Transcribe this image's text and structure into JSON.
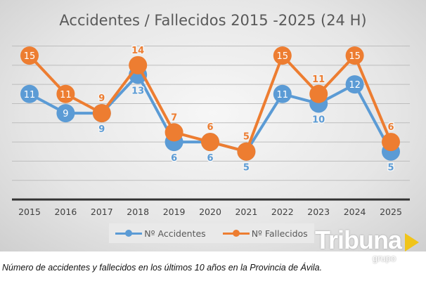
{
  "chart_data": {
    "type": "line",
    "title": "Accidentes / Fallecidos 2015  -2025 (24 H)",
    "categories": [
      "2015",
      "2016",
      "2017",
      "2018",
      "2019",
      "2020",
      "2021",
      "2022",
      "2023",
      "2024",
      "2025"
    ],
    "series": [
      {
        "name": "Nº Accidentes",
        "color": "#5b9bd5",
        "values": [
          11,
          9,
          9,
          13,
          6,
          6,
          5,
          11,
          10,
          12,
          5
        ]
      },
      {
        "name": "Nº Fallecidos",
        "color": "#ed7d31",
        "values": [
          15,
          11,
          9,
          14,
          7,
          6,
          5,
          15,
          11,
          15,
          6
        ]
      }
    ],
    "ylim": [
      0,
      16
    ],
    "ystep": 2,
    "grid": true,
    "legend": "bottom",
    "xlabel": "",
    "ylabel": ""
  },
  "caption": "Número de accidentes y fallecidos en los últimos 10 años en la Provincia de Ávila.",
  "logo": {
    "name": "Tribuna",
    "sub": "grupo"
  }
}
